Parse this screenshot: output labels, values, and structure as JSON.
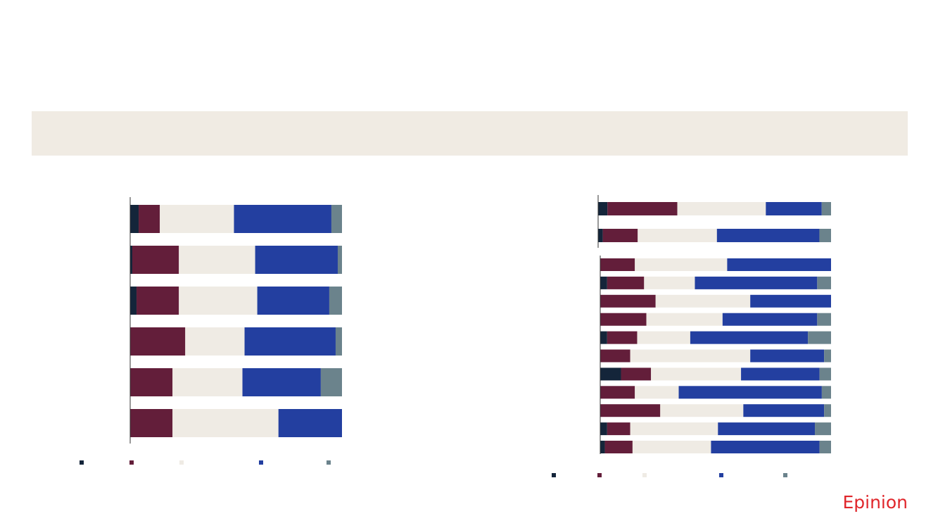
{
  "logo": "Epinion",
  "chart_data": [
    {
      "type": "bar",
      "orientation": "horizontal",
      "stacked": true,
      "xlim": [
        0,
        100
      ],
      "categories": [
        null,
        null,
        null,
        null,
        null,
        null
      ],
      "series": [
        {
          "color": "#14253a",
          "values": [
            4,
            1,
            3,
            0,
            0,
            0
          ]
        },
        {
          "color": "#631e3a",
          "values": [
            10,
            22,
            20,
            26,
            20,
            20
          ]
        },
        {
          "color": "#efebe4",
          "values": [
            35,
            36,
            37,
            28,
            33,
            50
          ]
        },
        {
          "color": "#233fa0",
          "values": [
            46,
            39,
            34,
            43,
            37,
            30
          ]
        },
        {
          "color": "#6b838c",
          "values": [
            5,
            2,
            6,
            3,
            10,
            0
          ]
        }
      ]
    },
    {
      "type": "bar",
      "orientation": "horizontal",
      "stacked": true,
      "xlim": [
        0,
        100
      ],
      "categories": [
        null,
        null,
        null,
        null,
        null,
        null,
        null,
        null,
        null,
        null,
        null,
        null,
        null
      ],
      "series": [
        {
          "color": "#14253a",
          "values": [
            4,
            2,
            0,
            3,
            0,
            0,
            3,
            0,
            9,
            0,
            0,
            3,
            2
          ]
        },
        {
          "color": "#631e3a",
          "values": [
            30,
            15,
            15,
            16,
            24,
            20,
            13,
            13,
            13,
            15,
            26,
            10,
            12
          ]
        },
        {
          "color": "#efebe4",
          "values": [
            38,
            34,
            40,
            22,
            41,
            33,
            23,
            52,
            39,
            19,
            36,
            38,
            34
          ]
        },
        {
          "color": "#233fa0",
          "values": [
            24,
            44,
            45,
            53,
            35,
            41,
            51,
            32,
            34,
            62,
            35,
            42,
            47
          ]
        },
        {
          "color": "#6b838c",
          "values": [
            4,
            5,
            0,
            6,
            0,
            6,
            10,
            3,
            5,
            4,
            3,
            7,
            5
          ]
        }
      ]
    }
  ]
}
